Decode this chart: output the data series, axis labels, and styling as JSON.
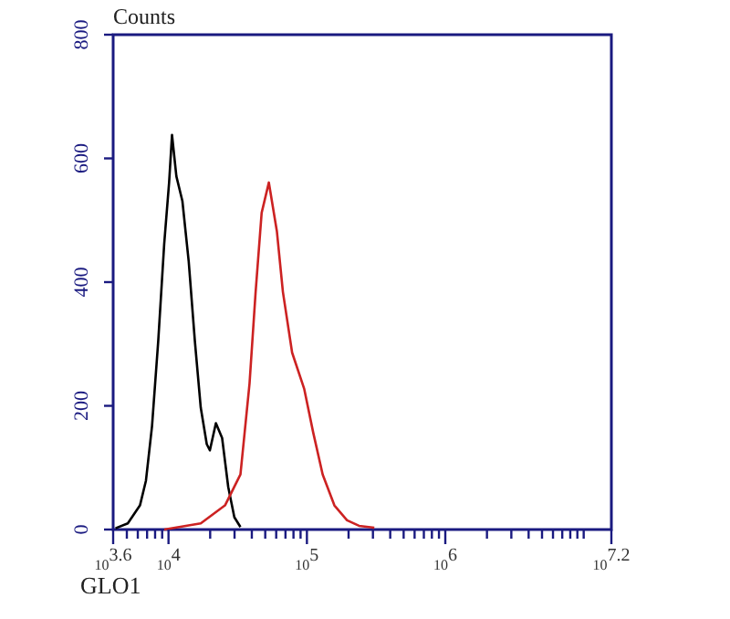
{
  "chart_data": {
    "type": "line",
    "ylabel": "Counts",
    "xlabel": "GLO1",
    "log": "x",
    "xlim": [
      3981,
      15848932
    ],
    "ylim": [
      0,
      800
    ],
    "xticks": [
      {
        "value": 3981,
        "label": "10$^{3.6}$"
      },
      {
        "value": 5000,
        "label": null
      },
      {
        "value": 6000,
        "label": null
      },
      {
        "value": 7000,
        "label": null
      },
      {
        "value": 8000,
        "label": null
      },
      {
        "value": 9000,
        "label": null
      },
      {
        "value": 10000,
        "label": "10$^{4}$"
      },
      {
        "value": 20000,
        "label": null
      },
      {
        "value": 30000,
        "label": null
      },
      {
        "value": 40000,
        "label": null
      },
      {
        "value": 50000,
        "label": null
      },
      {
        "value": 60000,
        "label": null
      },
      {
        "value": 70000,
        "label": null
      },
      {
        "value": 80000,
        "label": null
      },
      {
        "value": 90000,
        "label": null
      },
      {
        "value": 100000,
        "label": "10$^{5}$"
      },
      {
        "value": 200000,
        "label": null
      },
      {
        "value": 300000,
        "label": null
      },
      {
        "value": 400000,
        "label": null
      },
      {
        "value": 500000,
        "label": null
      },
      {
        "value": 600000,
        "label": null
      },
      {
        "value": 700000,
        "label": null
      },
      {
        "value": 800000,
        "label": null
      },
      {
        "value": 900000,
        "label": null
      },
      {
        "value": 1000000,
        "label": "10$^{6}$"
      },
      {
        "value": 2000000,
        "label": null
      },
      {
        "value": 3000000,
        "label": null
      },
      {
        "value": 4000000,
        "label": null
      },
      {
        "value": 5000000,
        "label": null
      },
      {
        "value": 6000000,
        "label": null
      },
      {
        "value": 7000000,
        "label": null
      },
      {
        "value": 8000000,
        "label": null
      },
      {
        "value": 9000000,
        "label": null
      },
      {
        "value": 10000000,
        "label": null
      },
      {
        "value": 15848932,
        "label": "10$^{7.2}$"
      }
    ],
    "yticks": [
      0,
      200,
      400,
      600,
      800
    ],
    "grid": false,
    "line_style": "solid",
    "series": [
      {
        "color": "#000000",
        "x": [
          4140,
          5080,
          6220,
          6870,
          7600,
          8430,
          9310,
          10100,
          10600,
          11400,
          12600,
          14000,
          15500,
          17100,
          18900,
          19900,
          22000,
          24400,
          27000,
          29900,
          33100
        ],
        "values": [
          2,
          10,
          39,
          79,
          167,
          305,
          462,
          561,
          638,
          571,
          531,
          433,
          305,
          197,
          138,
          128,
          172,
          148,
          69,
          20,
          4
        ]
      },
      {
        "color": "#cc2222",
        "x": [
          9310,
          17100,
          25600,
          33100,
          38500,
          42600,
          47100,
          53100,
          60700,
          67100,
          78200,
          95700,
          111000,
          130000,
          158000,
          195000,
          238000,
          307000
        ],
        "values": [
          0,
          10,
          39,
          89,
          236,
          384,
          512,
          561,
          482,
          384,
          286,
          227,
          157,
          89,
          39,
          15,
          6,
          3
        ]
      }
    ]
  }
}
